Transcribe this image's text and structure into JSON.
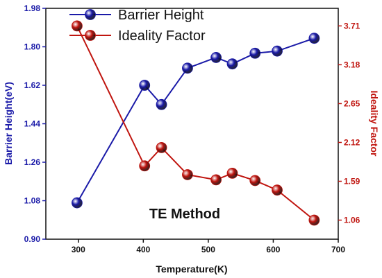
{
  "chart_data": {
    "type": "line",
    "xlabel": "Temperature(K)",
    "x_ticks": [
      "300",
      "400",
      "500",
      "600",
      "700"
    ],
    "xlim": [
      250,
      700
    ],
    "y_left": {
      "label": "Barrier Height(eV)",
      "ticks": [
        "0.90",
        "1.08",
        "1.26",
        "1.44",
        "1.62",
        "1.80",
        "1.98"
      ],
      "lim": [
        0.9,
        1.98
      ],
      "color": "#1a1aa8"
    },
    "y_right": {
      "label": "Ideality Factor",
      "ticks": [
        "1.06",
        "1.59",
        "2.12",
        "2.65",
        "3.18",
        "3.71"
      ],
      "lim": [
        0.8,
        3.95
      ],
      "color": "#c0150f"
    },
    "series": [
      {
        "name": "Barrier Height",
        "axis": "left",
        "color": "#1a1aa8",
        "x": [
          298,
          402,
          428,
          468,
          512,
          537,
          572,
          606,
          663
        ],
        "values": [
          1.07,
          1.62,
          1.53,
          1.7,
          1.75,
          1.72,
          1.77,
          1.78,
          1.84
        ]
      },
      {
        "name": "Ideality Factor",
        "axis": "right",
        "color": "#c0150f",
        "x": [
          298,
          402,
          428,
          468,
          512,
          537,
          572,
          606,
          663
        ],
        "values": [
          3.71,
          1.8,
          2.05,
          1.68,
          1.61,
          1.7,
          1.6,
          1.47,
          1.06
        ]
      }
    ],
    "annotation": "TE Method",
    "legend_position": "top"
  }
}
